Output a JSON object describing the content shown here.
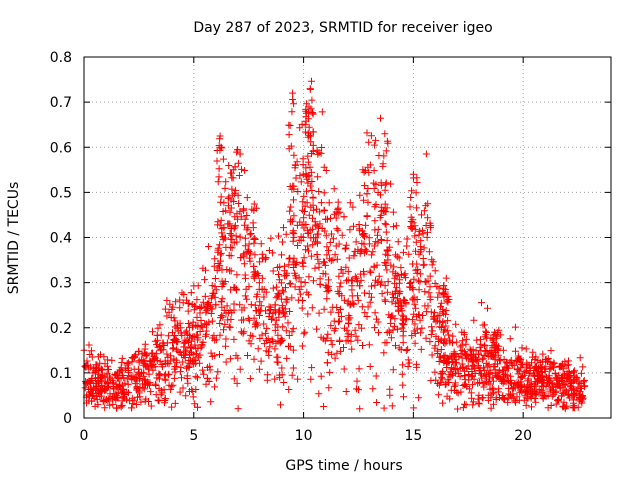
{
  "chart_data": {
    "type": "scatter",
    "title": "Day 287 of 2023, SRMTID for receiver igeo",
    "xlabel": "GPS time / hours",
    "ylabel": "SRMTID / TECUs",
    "xlim": [
      0,
      24
    ],
    "ylim": [
      0,
      0.8
    ],
    "xticks": [
      0,
      5,
      10,
      15,
      20
    ],
    "yticks": [
      0,
      0.1,
      0.2,
      0.3,
      0.4,
      0.5,
      0.6,
      0.7,
      0.8
    ],
    "xtick_labels": [
      "0",
      "5",
      "10",
      "15",
      "20"
    ],
    "ytick_labels": [
      "0",
      "0.1",
      "0.2",
      "0.3",
      "0.4",
      "0.5",
      "0.6",
      "0.7",
      "0.8"
    ],
    "grid": true,
    "marker": "+",
    "series_color": "#ff0000",
    "profile": [
      [
        0.0,
        0.09
      ],
      [
        0.5,
        0.08
      ],
      [
        1.0,
        0.075
      ],
      [
        1.5,
        0.07
      ],
      [
        2.0,
        0.075
      ],
      [
        2.5,
        0.09
      ],
      [
        3.0,
        0.11
      ],
      [
        3.5,
        0.13
      ],
      [
        4.0,
        0.15
      ],
      [
        4.5,
        0.16
      ],
      [
        5.0,
        0.17
      ],
      [
        5.5,
        0.2
      ],
      [
        6.0,
        0.25
      ],
      [
        6.5,
        0.32
      ],
      [
        7.0,
        0.35
      ],
      [
        7.5,
        0.3
      ],
      [
        8.0,
        0.25
      ],
      [
        8.5,
        0.24
      ],
      [
        9.0,
        0.22
      ],
      [
        9.5,
        0.3
      ],
      [
        10.0,
        0.4
      ],
      [
        10.5,
        0.42
      ],
      [
        11.0,
        0.35
      ],
      [
        11.5,
        0.28
      ],
      [
        12.0,
        0.25
      ],
      [
        12.5,
        0.28
      ],
      [
        13.0,
        0.35
      ],
      [
        13.5,
        0.38
      ],
      [
        14.0,
        0.28
      ],
      [
        14.5,
        0.2
      ],
      [
        15.0,
        0.25
      ],
      [
        15.5,
        0.3
      ],
      [
        16.0,
        0.2
      ],
      [
        16.5,
        0.13
      ],
      [
        17.0,
        0.12
      ],
      [
        17.5,
        0.11
      ],
      [
        18.0,
        0.12
      ],
      [
        18.5,
        0.13
      ],
      [
        19.0,
        0.1
      ],
      [
        19.5,
        0.1
      ],
      [
        20.0,
        0.095
      ],
      [
        20.5,
        0.09
      ],
      [
        21.0,
        0.085
      ],
      [
        21.5,
        0.08
      ],
      [
        22.0,
        0.075
      ],
      [
        22.8,
        0.07
      ]
    ],
    "peaks": [
      [
        6.2,
        0.625
      ],
      [
        6.8,
        0.55
      ],
      [
        9.5,
        0.72
      ],
      [
        10.3,
        0.73
      ],
      [
        10.1,
        0.68
      ],
      [
        12.7,
        0.55
      ],
      [
        13.7,
        0.63
      ],
      [
        15.0,
        0.54
      ],
      [
        16.5,
        0.31
      ],
      [
        18.7,
        0.19
      ]
    ],
    "n_points": 2300
  }
}
